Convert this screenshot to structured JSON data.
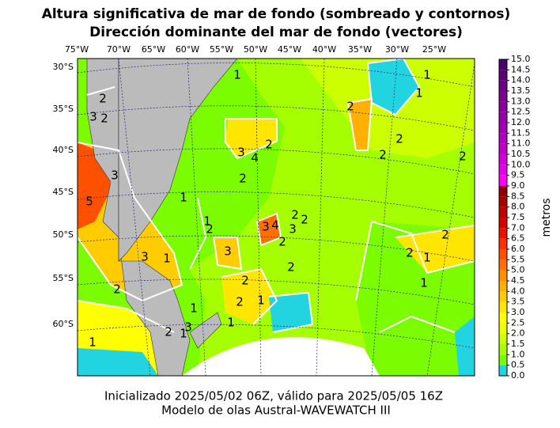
{
  "title": [
    "Altura significativa de mar de fondo (sombreado y contornos)",
    "Dirección dominante del mar de fondo (vectores)"
  ],
  "footer": [
    "Inicializado 2025/05/02 06Z, válido para 2025/05/05 16Z",
    "Modelo de olas Austral-WAVEWATCH III"
  ],
  "lon_ticks": [
    "75°W",
    "70°W",
    "65°W",
    "60°W",
    "55°W",
    "50°W",
    "45°W",
    "40°W",
    "35°W",
    "30°W",
    "25°W"
  ],
  "lat_ticks": [
    "30°S",
    "35°S",
    "40°S",
    "45°S",
    "50°S",
    "55°S",
    "60°S"
  ],
  "colorbar": {
    "label": "metros",
    "lim": [
      0,
      15
    ],
    "ticks": [
      {
        "value": 0,
        "label": "0.0"
      },
      {
        "value": 0.5,
        "label": "0.5"
      },
      {
        "value": 1,
        "label": "1.0"
      },
      {
        "value": 1.5,
        "label": "1.5"
      },
      {
        "value": 2,
        "label": "2.0"
      },
      {
        "value": 2.5,
        "label": "2.5"
      },
      {
        "value": 3,
        "label": "3.0"
      },
      {
        "value": 3.5,
        "label": "3.5"
      },
      {
        "value": 4,
        "label": "4.0"
      },
      {
        "value": 4.5,
        "label": "4.5"
      },
      {
        "value": 5,
        "label": "5.0"
      },
      {
        "value": 5.5,
        "label": "5.5"
      },
      {
        "value": 6,
        "label": "6.0"
      },
      {
        "value": 6.5,
        "label": "6.5"
      },
      {
        "value": 7,
        "label": "7.0"
      },
      {
        "value": 7.5,
        "label": "7.5"
      },
      {
        "value": 8,
        "label": "8.0"
      },
      {
        "value": 8.5,
        "label": "8.5"
      },
      {
        "value": 9,
        "label": "9.0"
      },
      {
        "value": 9.5,
        "label": "9.5"
      },
      {
        "value": 10,
        "label": "10.0"
      },
      {
        "value": 10.5,
        "label": "10.5"
      },
      {
        "value": 11,
        "label": "11.0"
      },
      {
        "value": 11.5,
        "label": "11.5"
      },
      {
        "value": 12,
        "label": "12.0"
      },
      {
        "value": 12.5,
        "label": "12.5"
      },
      {
        "value": 13,
        "label": "13.0"
      },
      {
        "value": 13.5,
        "label": "13.5"
      },
      {
        "value": 14,
        "label": "14.0"
      },
      {
        "value": 14.5,
        "label": "14.5"
      },
      {
        "value": 15,
        "label": "15.0"
      }
    ],
    "colors": [
      "#22d3e0",
      "#7cfc00",
      "#a6ff00",
      "#ccff00",
      "#eeff00",
      "#ffff00",
      "#ffe600",
      "#ffcc00",
      "#ffb000",
      "#ff9000",
      "#ff7000",
      "#ff5000",
      "#ff3000",
      "#f01000",
      "#d80000",
      "#c00000",
      "#a80000",
      "#900000",
      "#ff00ff",
      "#e600e6",
      "#d000d6",
      "#c000c8",
      "#b000c0",
      "#a000b4",
      "#9400a8",
      "#88009c",
      "#7a0090",
      "#6c0084",
      "#5c0078",
      "#4b006e"
    ]
  },
  "contour_labels": [
    1,
    1,
    2,
    1,
    3,
    2,
    2,
    3,
    2,
    4,
    2,
    2,
    2,
    2,
    3,
    5,
    1,
    1,
    2,
    3,
    3,
    4,
    3,
    2,
    2,
    2,
    2,
    2,
    2,
    1,
    1,
    3,
    1,
    2,
    2,
    1,
    2,
    1,
    1,
    2,
    1,
    3,
    1
  ]
}
